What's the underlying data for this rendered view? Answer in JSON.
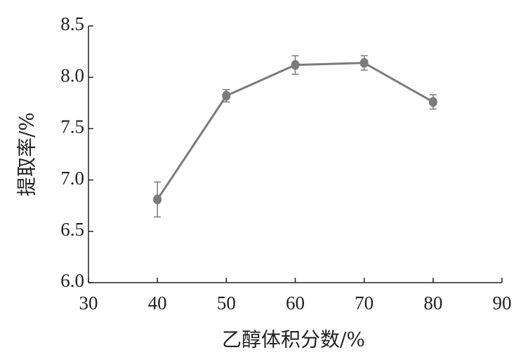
{
  "chart_data": {
    "type": "line",
    "x_label": "乙醇体积分数/%",
    "y_label": "提取率/%",
    "x": [
      40,
      50,
      60,
      70,
      80
    ],
    "series": [
      {
        "color": "#7b7b7b",
        "values": [
          6.81,
          7.82,
          8.12,
          8.14,
          7.76
        ],
        "errors": [
          0.17,
          0.06,
          0.09,
          0.07,
          0.07
        ]
      }
    ],
    "xlim": [
      30,
      90
    ],
    "xticks": [
      30,
      40,
      50,
      60,
      70,
      80,
      90
    ],
    "ylim": [
      6.0,
      8.5
    ],
    "yticks": [
      {
        "value": 6.0,
        "label": "6.0"
      },
      {
        "value": 6.5,
        "label": "6.5"
      },
      {
        "value": 7.0,
        "label": "7.0"
      },
      {
        "value": 7.5,
        "label": "7.5"
      },
      {
        "value": 8.0,
        "label": "8.0"
      },
      {
        "value": 8.5,
        "label": "8.5"
      }
    ]
  }
}
